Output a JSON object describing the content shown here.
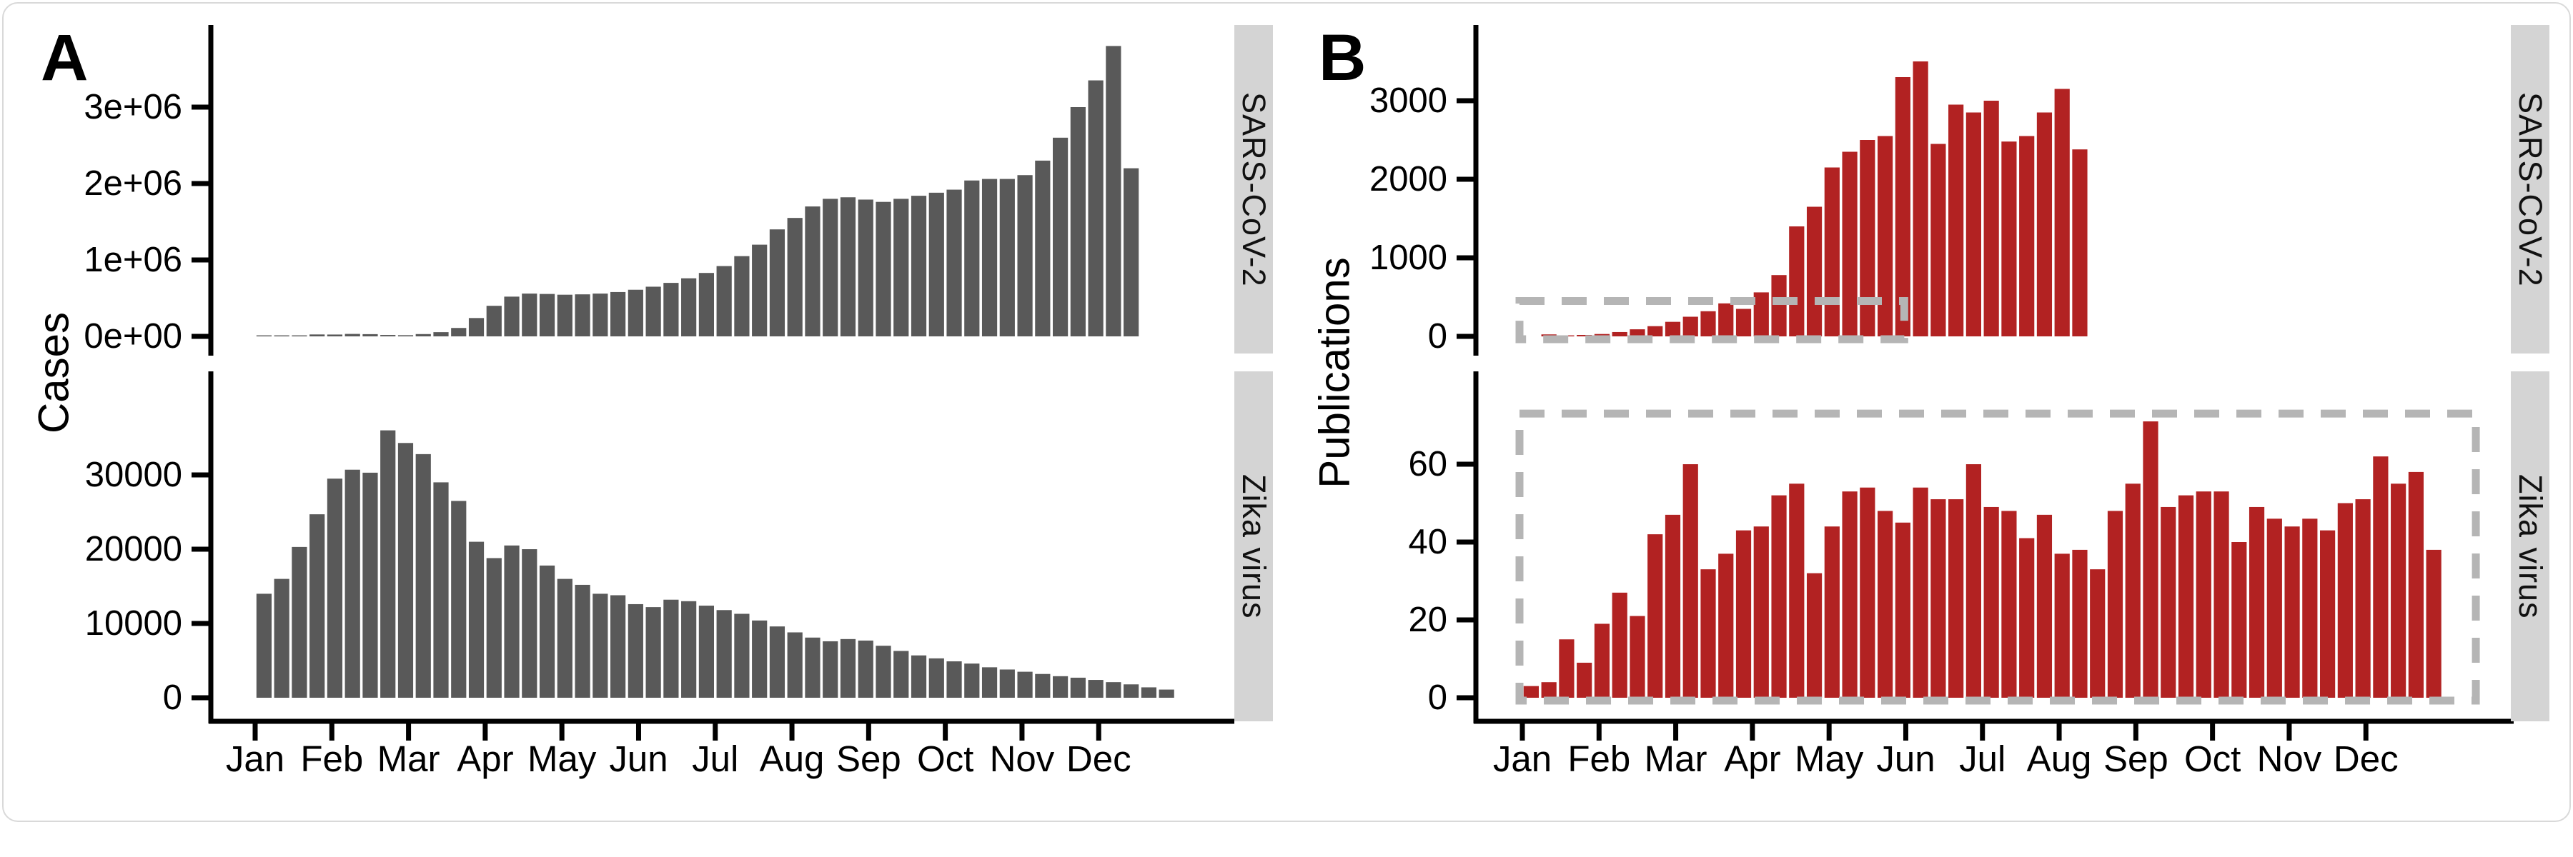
{
  "figure": {
    "panel_a_label": "A",
    "panel_b_label": "B",
    "cases_axis_title": "Cases",
    "publications_axis_title": "Publications",
    "facet_labels": {
      "top": "SARS-CoV-2",
      "bottom": "Zika virus"
    }
  },
  "months": [
    "Jan",
    "Feb",
    "Mar",
    "Apr",
    "May",
    "Jun",
    "Jul",
    "Aug",
    "Sep",
    "Oct",
    "Nov",
    "Dec"
  ],
  "colors": {
    "cases_bar": "#595959",
    "publications_bar": "#b22222",
    "strip_bg": "#d4d4d4",
    "dash_box": "#b5b5b5",
    "axis": "#000000"
  },
  "chart_data": [
    {
      "id": "sars_cov_2_cases",
      "type": "bar",
      "panel": "A",
      "facet": "SARS-CoV-2",
      "ylabel": "Cases",
      "x_unit": "week of year",
      "start_week": 0,
      "ylim": [
        0,
        3900000
      ],
      "yticks": [
        0,
        1000000,
        2000000,
        3000000
      ],
      "ytick_labels": [
        "0e+00",
        "1e+06",
        "2e+06",
        "3e+06"
      ],
      "color": "#595959",
      "zoom_box": null,
      "values": [
        900,
        2600,
        4600,
        25000,
        24000,
        32000,
        29000,
        18000,
        15000,
        30000,
        55000,
        110000,
        240000,
        400000,
        520000,
        560000,
        555000,
        545000,
        550000,
        560000,
        580000,
        610000,
        650000,
        700000,
        760000,
        830000,
        920000,
        1050000,
        1200000,
        1400000,
        1550000,
        1700000,
        1800000,
        1820000,
        1790000,
        1760000,
        1800000,
        1840000,
        1880000,
        1920000,
        2040000,
        2060000,
        2060000,
        2110000,
        2300000,
        2600000,
        3000000,
        3350000,
        3800000,
        2200000
      ]
    },
    {
      "id": "zika_cases",
      "type": "bar",
      "panel": "A",
      "facet": "Zika virus",
      "ylabel": "Cases",
      "x_unit": "week of year",
      "start_week": 0,
      "ylim": [
        0,
        37000
      ],
      "yticks": [
        0,
        10000,
        20000,
        30000
      ],
      "ytick_labels": [
        "0",
        "10000",
        "20000",
        "30000"
      ],
      "color": "#595959",
      "zoom_box": null,
      "values": [
        14000,
        16000,
        20300,
        24700,
        29500,
        30700,
        30300,
        36000,
        34300,
        32800,
        29000,
        26500,
        21000,
        18800,
        20500,
        20000,
        17800,
        16000,
        15200,
        14000,
        13800,
        12600,
        12200,
        13200,
        13000,
        12400,
        11800,
        11300,
        10400,
        9600,
        8800,
        8100,
        7600,
        7900,
        7700,
        7000,
        6300,
        5700,
        5300,
        4900,
        4600,
        4100,
        3800,
        3500,
        3200,
        2900,
        2700,
        2400,
        2100,
        1800,
        1400,
        1100
      ]
    },
    {
      "id": "sars_cov_2_publications",
      "type": "bar",
      "panel": "B",
      "facet": "SARS-CoV-2",
      "ylabel": "Publications",
      "x_unit": "week of year",
      "start_week": 1,
      "ylim": [
        0,
        3600
      ],
      "yticks": [
        0,
        1000,
        2000,
        3000
      ],
      "ytick_labels": [
        "0",
        "1000",
        "2000",
        "3000"
      ],
      "color": "#b22222",
      "zoom_box": {
        "start_week": 0,
        "end_week": 21.5,
        "y_top": 450
      },
      "values": [
        25,
        12,
        18,
        30,
        55,
        90,
        130,
        185,
        250,
        320,
        420,
        350,
        560,
        780,
        1400,
        1650,
        2150,
        2350,
        2500,
        2550,
        3300,
        3500,
        2450,
        2950,
        2850,
        3000,
        2480,
        2550,
        2850,
        3150,
        2380
      ]
    },
    {
      "id": "zika_publications",
      "type": "bar",
      "panel": "B",
      "facet": "Zika virus",
      "ylabel": "Publications",
      "x_unit": "week of year",
      "start_week": 0,
      "ylim": [
        0,
        75
      ],
      "yticks": [
        0,
        20,
        40,
        60
      ],
      "ytick_labels": [
        "0",
        "20",
        "40",
        "60"
      ],
      "color": "#b22222",
      "zoom_box": {
        "start_week": 0,
        "end_week": 53.8,
        "y_top": 73
      },
      "values": [
        3,
        4,
        15,
        9,
        19,
        27,
        21,
        42,
        47,
        60,
        33,
        37,
        43,
        44,
        52,
        55,
        32,
        44,
        53,
        54,
        48,
        45,
        54,
        51,
        51,
        60,
        49,
        48,
        41,
        47,
        37,
        38,
        33,
        48,
        55,
        71,
        49,
        52,
        53,
        53,
        40,
        49,
        46,
        44,
        46,
        43,
        50,
        51,
        62,
        55,
        58,
        38
      ]
    }
  ]
}
